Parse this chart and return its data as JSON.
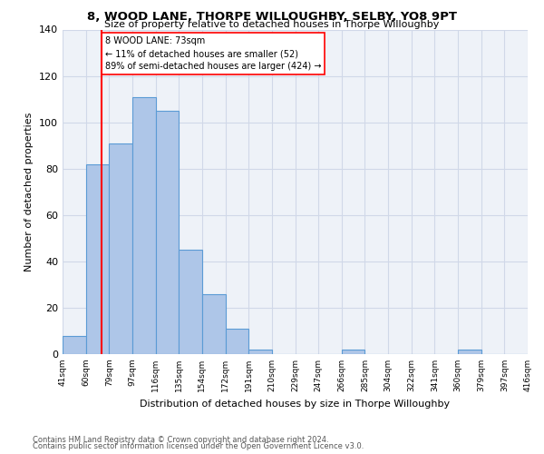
{
  "title": "8, WOOD LANE, THORPE WILLOUGHBY, SELBY, YO8 9PT",
  "subtitle": "Size of property relative to detached houses in Thorpe Willoughby",
  "xlabel": "Distribution of detached houses by size in Thorpe Willoughby",
  "ylabel": "Number of detached properties",
  "footnote1": "Contains HM Land Registry data © Crown copyright and database right 2024.",
  "footnote2": "Contains public sector information licensed under the Open Government Licence v3.0.",
  "bar_values": [
    8,
    82,
    91,
    111,
    105,
    45,
    26,
    11,
    2,
    0,
    0,
    0,
    2,
    0,
    0,
    0,
    0,
    2,
    0,
    0
  ],
  "bin_labels": [
    "41sqm",
    "60sqm",
    "79sqm",
    "97sqm",
    "116sqm",
    "135sqm",
    "154sqm",
    "172sqm",
    "191sqm",
    "210sqm",
    "229sqm",
    "247sqm",
    "266sqm",
    "285sqm",
    "304sqm",
    "322sqm",
    "341sqm",
    "360sqm",
    "379sqm",
    "397sqm",
    "416sqm"
  ],
  "bar_color": "#aec6e8",
  "bar_edge_color": "#5b9bd5",
  "grid_color": "#d0d8e8",
  "background_color": "#eef2f8",
  "property_size_sqm": 73,
  "annotation_line1": "8 WOOD LANE: 73sqm",
  "annotation_line2": "← 11% of detached houses are smaller (52)",
  "annotation_line3": "89% of semi-detached houses are larger (424) →",
  "ylim": [
    0,
    140
  ],
  "yticks": [
    0,
    20,
    40,
    60,
    80,
    100,
    120,
    140
  ]
}
